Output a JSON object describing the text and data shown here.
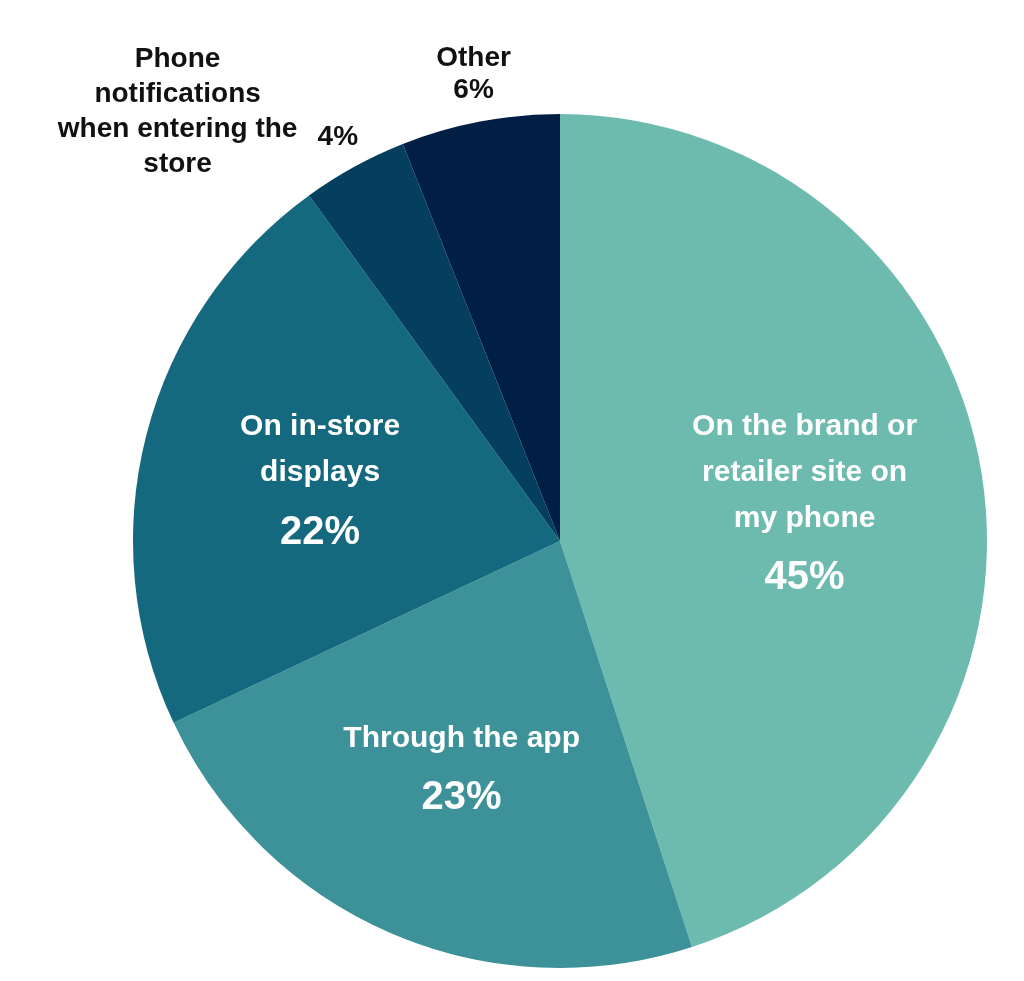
{
  "chart_data": {
    "type": "pie",
    "categories": [
      "On the brand or retailer site on my phone",
      "Through the app",
      "On in-store displays",
      "Phone notifications when entering the store",
      "Other"
    ],
    "values": [
      45,
      23,
      22,
      4,
      6
    ],
    "value_labels": [
      "45%",
      "23%",
      "22%",
      "4%",
      "6%"
    ],
    "colors": [
      "#6dbaae",
      "#3d9198",
      "#15697f",
      "#043f5f",
      "#011f45"
    ],
    "legend": false
  }
}
